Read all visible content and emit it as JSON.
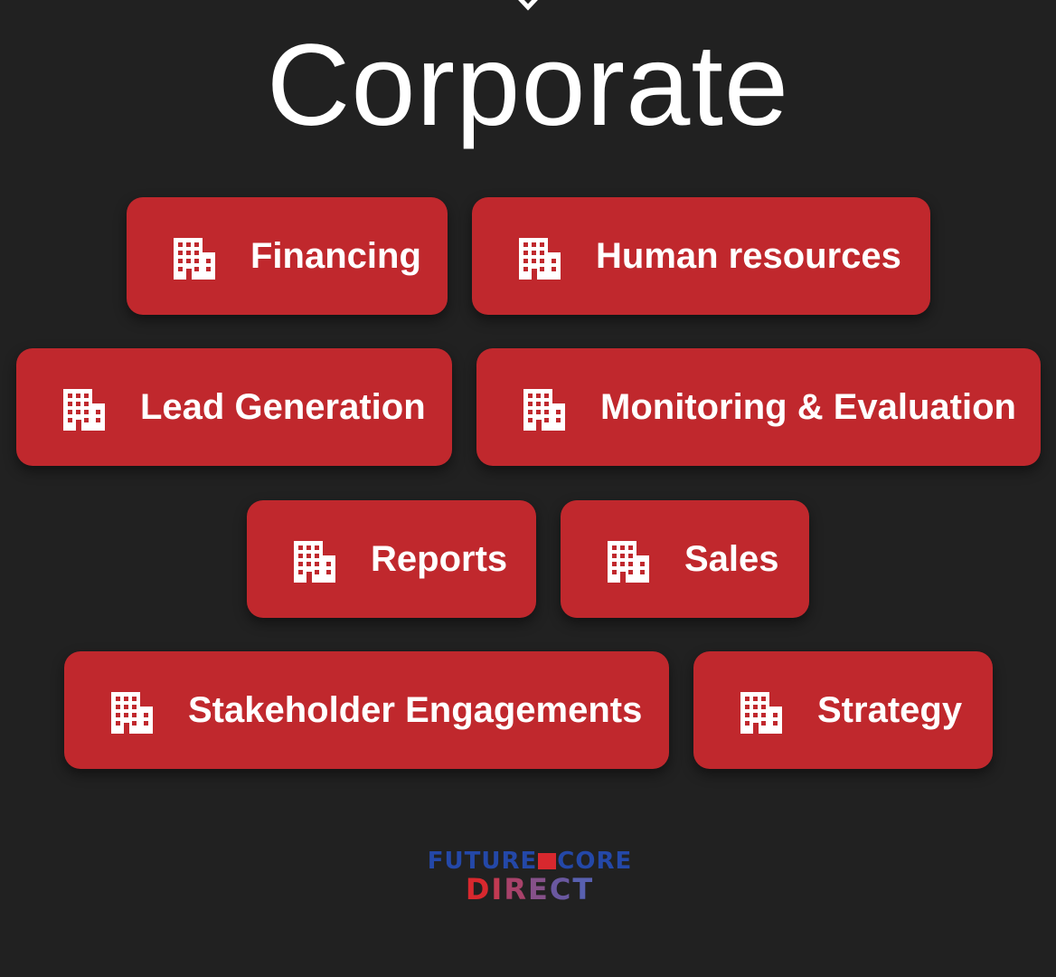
{
  "header": {
    "title": "Corporate"
  },
  "categories": [
    {
      "label": "Financing",
      "icon": "building-icon"
    },
    {
      "label": "Human resources",
      "icon": "building-icon"
    },
    {
      "label": "Lead Generation",
      "icon": "building-icon"
    },
    {
      "label": "Monitoring & Evaluation",
      "icon": "building-icon"
    },
    {
      "label": "Reports",
      "icon": "building-icon"
    },
    {
      "label": "Sales",
      "icon": "building-icon"
    },
    {
      "label": "Stakeholder Engagements",
      "icon": "building-icon"
    },
    {
      "label": "Strategy",
      "icon": "building-icon"
    }
  ],
  "logo": {
    "line1_part1": "FUTURE",
    "line1_part2": "CORE",
    "line2": "DIRECT"
  },
  "colors": {
    "background": "#212121",
    "chip": "#c0282d",
    "text": "#ffffff"
  }
}
